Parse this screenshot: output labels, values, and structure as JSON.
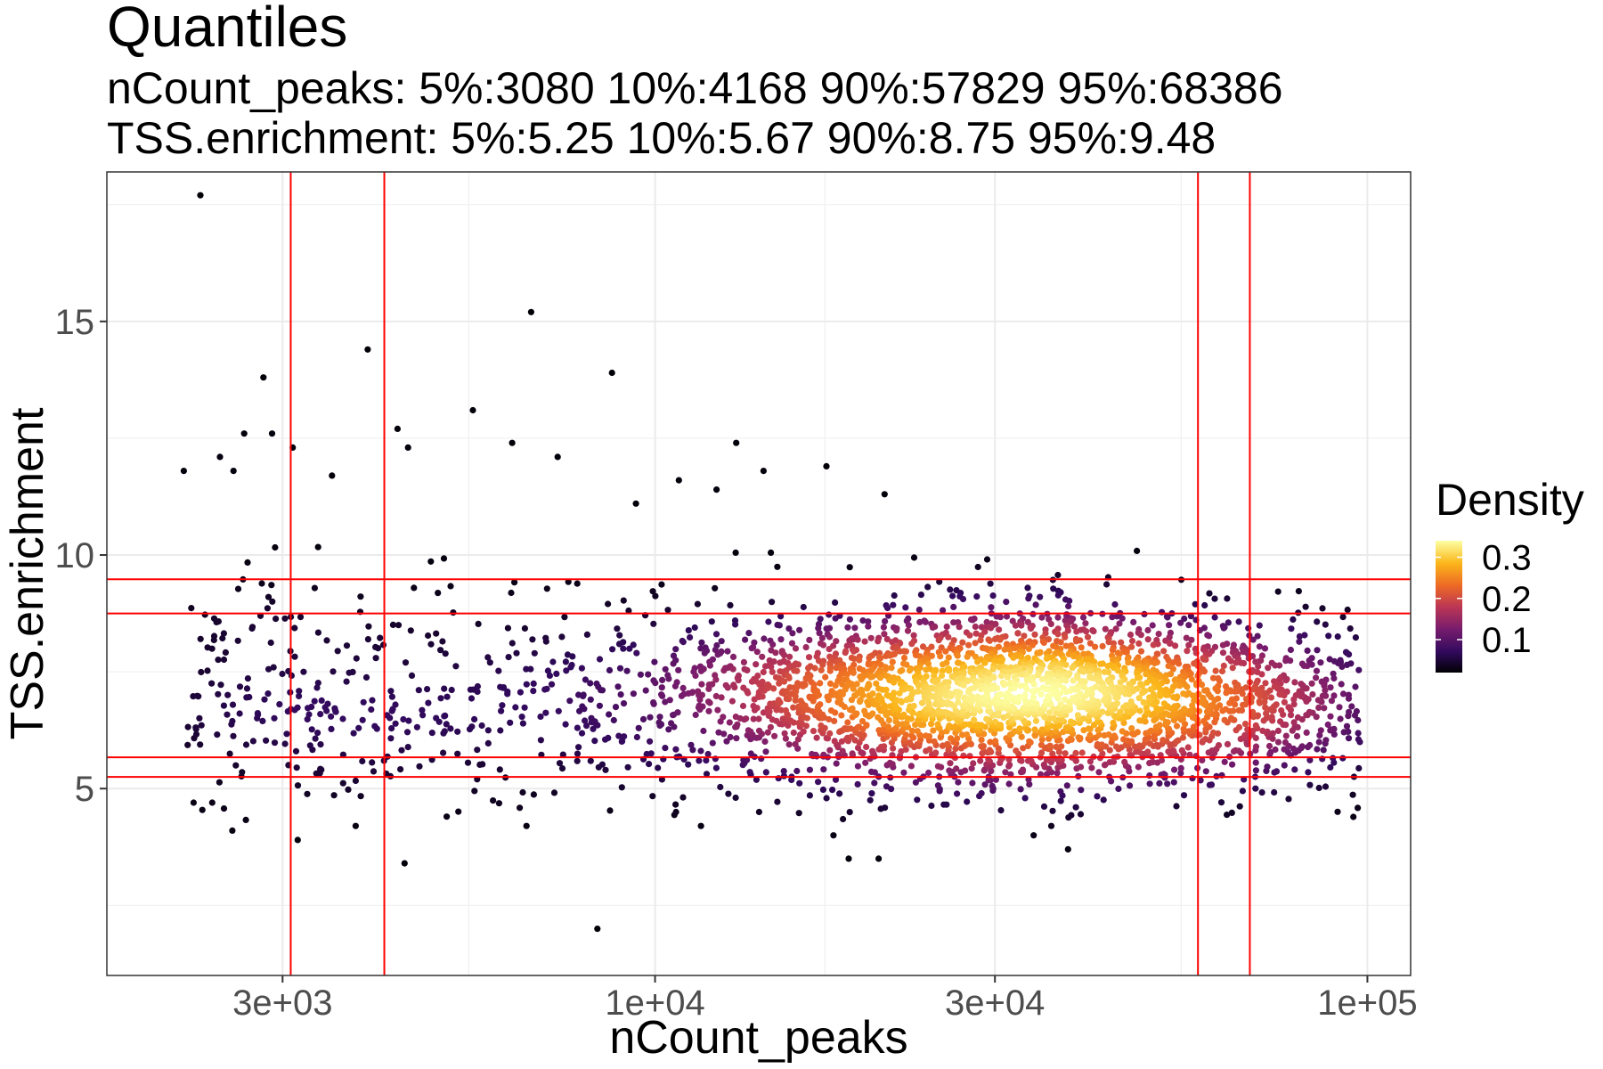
{
  "chart_data": {
    "type": "scatter",
    "title": "Quantiles",
    "subtitle_lines": [
      "nCount_peaks: 5%:3080 10%:4168 90%:57829 95%:68386",
      "TSS.enrichment: 5%:5.25 10%:5.67 90%:8.75 95%:9.48"
    ],
    "xlabel": "nCount_peaks",
    "ylabel": "TSS.enrichment",
    "x_scale": "log10",
    "xlim": [
      1700,
      115000
    ],
    "ylim": [
      1.0,
      18.2
    ],
    "x_ticks": [
      {
        "value": 3000,
        "label": "3e+03"
      },
      {
        "value": 10000,
        "label": "1e+04"
      },
      {
        "value": 30000,
        "label": "3e+04"
      },
      {
        "value": 100000,
        "label": "1e+05"
      }
    ],
    "y_ticks": [
      {
        "value": 5,
        "label": "5"
      },
      {
        "value": 10,
        "label": "10"
      },
      {
        "value": 15,
        "label": "15"
      }
    ],
    "grid": true,
    "vlines": [
      3080,
      4168,
      57829,
      68386
    ],
    "hlines": [
      5.25,
      5.67,
      8.75,
      9.48
    ],
    "reference_line_color": "#ff0000",
    "legend": {
      "title": "Density",
      "position": "right",
      "range": [
        0.02,
        0.34
      ],
      "ticks": [
        {
          "value": 0.1,
          "label": "0.1"
        },
        {
          "value": 0.2,
          "label": "0.2"
        },
        {
          "value": 0.3,
          "label": "0.3"
        }
      ],
      "colormap": "inferno",
      "colors": [
        "#000004",
        "#320a5e",
        "#781c6d",
        "#bc3754",
        "#ed6925",
        "#fbb61a",
        "#fcffa4"
      ]
    },
    "outliers": [
      {
        "x": 2300,
        "y": 17.7
      },
      {
        "x": 6700,
        "y": 15.2
      },
      {
        "x": 3950,
        "y": 14.4
      },
      {
        "x": 8700,
        "y": 13.9
      },
      {
        "x": 2820,
        "y": 13.8
      },
      {
        "x": 5550,
        "y": 13.1
      },
      {
        "x": 4350,
        "y": 12.7
      },
      {
        "x": 6300,
        "y": 12.4
      },
      {
        "x": 13000,
        "y": 12.4
      },
      {
        "x": 2650,
        "y": 12.6
      },
      {
        "x": 2900,
        "y": 12.6
      },
      {
        "x": 3100,
        "y": 12.3
      },
      {
        "x": 4500,
        "y": 12.3
      },
      {
        "x": 2450,
        "y": 12.1
      },
      {
        "x": 7300,
        "y": 12.1
      },
      {
        "x": 2180,
        "y": 11.8
      },
      {
        "x": 2560,
        "y": 11.8
      },
      {
        "x": 3520,
        "y": 11.7
      },
      {
        "x": 14200,
        "y": 11.8
      },
      {
        "x": 17400,
        "y": 11.9
      },
      {
        "x": 9400,
        "y": 11.1
      },
      {
        "x": 10800,
        "y": 11.6
      },
      {
        "x": 12200,
        "y": 11.4
      },
      {
        "x": 21000,
        "y": 11.3
      },
      {
        "x": 8300,
        "y": 2.0
      },
      {
        "x": 4450,
        "y": 3.4
      },
      {
        "x": 18700,
        "y": 3.5
      },
      {
        "x": 20600,
        "y": 3.5
      },
      {
        "x": 3150,
        "y": 3.9
      },
      {
        "x": 34000,
        "y": 4.0
      },
      {
        "x": 38000,
        "y": 3.7
      },
      {
        "x": 2550,
        "y": 4.1
      },
      {
        "x": 3800,
        "y": 4.2
      },
      {
        "x": 6600,
        "y": 4.2
      },
      {
        "x": 11600,
        "y": 4.2
      },
      {
        "x": 17800,
        "y": 4.0
      },
      {
        "x": 36000,
        "y": 4.2
      },
      {
        "x": 2250,
        "y": 4.7
      },
      {
        "x": 2390,
        "y": 4.7
      },
      {
        "x": 5100,
        "y": 4.4
      },
      {
        "x": 10700,
        "y": 4.5
      },
      {
        "x": 14000,
        "y": 4.5
      }
    ]
  }
}
